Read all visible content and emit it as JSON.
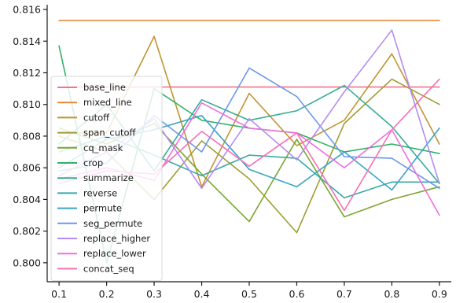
{
  "chart_data": {
    "type": "line",
    "title": "",
    "xlabel": "",
    "ylabel": "",
    "x": [
      0.1,
      0.2,
      0.3,
      0.4,
      0.5,
      0.6,
      0.7,
      0.8,
      0.9
    ],
    "x_ticks": [
      "0.1",
      "0.2",
      "0.3",
      "0.4",
      "0.5",
      "0.6",
      "0.7",
      "0.8",
      "0.9"
    ],
    "xlim": [
      0.075,
      0.925
    ],
    "y_ticks": [
      "0.800",
      "0.802",
      "0.804",
      "0.806",
      "0.808",
      "0.810",
      "0.812",
      "0.814",
      "0.816"
    ],
    "ylim": [
      0.7988,
      0.8163
    ],
    "grid": false,
    "legend_position": "left",
    "series": [
      {
        "name": "base_line",
        "color": "#f7718a",
        "values": [
          0.8111,
          0.8111,
          0.8111,
          0.8111,
          0.8111,
          0.8111,
          0.8111,
          0.8111,
          0.8111
        ]
      },
      {
        "name": "mixed_line",
        "color": "#e68a3c",
        "values": [
          0.8153,
          0.8153,
          0.8153,
          0.8153,
          0.8153,
          0.8153,
          0.8153,
          0.8153,
          0.8153
        ]
      },
      {
        "name": "cutoff",
        "color": "#c19432",
        "values": [
          0.8082,
          0.8082,
          0.8143,
          0.8048,
          0.8107,
          0.8074,
          0.809,
          0.8132,
          0.8075
        ]
      },
      {
        "name": "span_cutoff",
        "color": "#a09d32",
        "values": [
          0.808,
          0.807,
          0.804,
          0.8077,
          0.8053,
          0.8019,
          0.8088,
          0.8116,
          0.81
        ]
      },
      {
        "name": "cq_mask",
        "color": "#79a731",
        "values": [
          0.8085,
          0.8075,
          0.8088,
          0.8056,
          0.8026,
          0.8078,
          0.8029,
          0.804,
          0.8048
        ]
      },
      {
        "name": "crop",
        "color": "#32b165",
        "values": [
          0.8137,
          0.8,
          0.811,
          0.809,
          0.8085,
          0.8082,
          0.807,
          0.8075,
          0.8069
        ]
      },
      {
        "name": "summarize",
        "color": "#36ad95",
        "values": [
          0.8075,
          0.81,
          0.8058,
          0.8103,
          0.809,
          0.8096,
          0.8112,
          0.8086,
          0.805
        ]
      },
      {
        "name": "reverse",
        "color": "#38a9ab",
        "values": [
          0.807,
          0.808,
          0.8068,
          0.8055,
          0.8068,
          0.8066,
          0.8041,
          0.8051,
          0.8051
        ]
      },
      {
        "name": "permute",
        "color": "#3ba4c3",
        "values": [
          0.806,
          0.8078,
          0.8084,
          0.8093,
          0.8059,
          0.8048,
          0.807,
          0.8046,
          0.8085
        ]
      },
      {
        "name": "seg_permute",
        "color": "#6b98ea",
        "values": [
          0.8058,
          0.8063,
          0.8093,
          0.807,
          0.8123,
          0.8105,
          0.8067,
          0.8066,
          0.8047
        ]
      },
      {
        "name": "replace_higher",
        "color": "#b48cf1",
        "values": [
          0.8055,
          0.807,
          0.8091,
          0.8047,
          0.8091,
          0.8065,
          0.8108,
          0.8147,
          0.805
        ]
      },
      {
        "name": "replace_lower",
        "color": "#ef6fe0",
        "values": [
          0.8053,
          0.806,
          0.8052,
          0.8101,
          0.8085,
          0.8082,
          0.806,
          0.8084,
          0.803
        ]
      },
      {
        "name": "concat_seq",
        "color": "#f76fb4",
        "values": [
          0.805,
          0.8058,
          0.8056,
          0.8083,
          0.8061,
          0.8082,
          0.8033,
          0.8084,
          0.8116
        ]
      }
    ]
  }
}
